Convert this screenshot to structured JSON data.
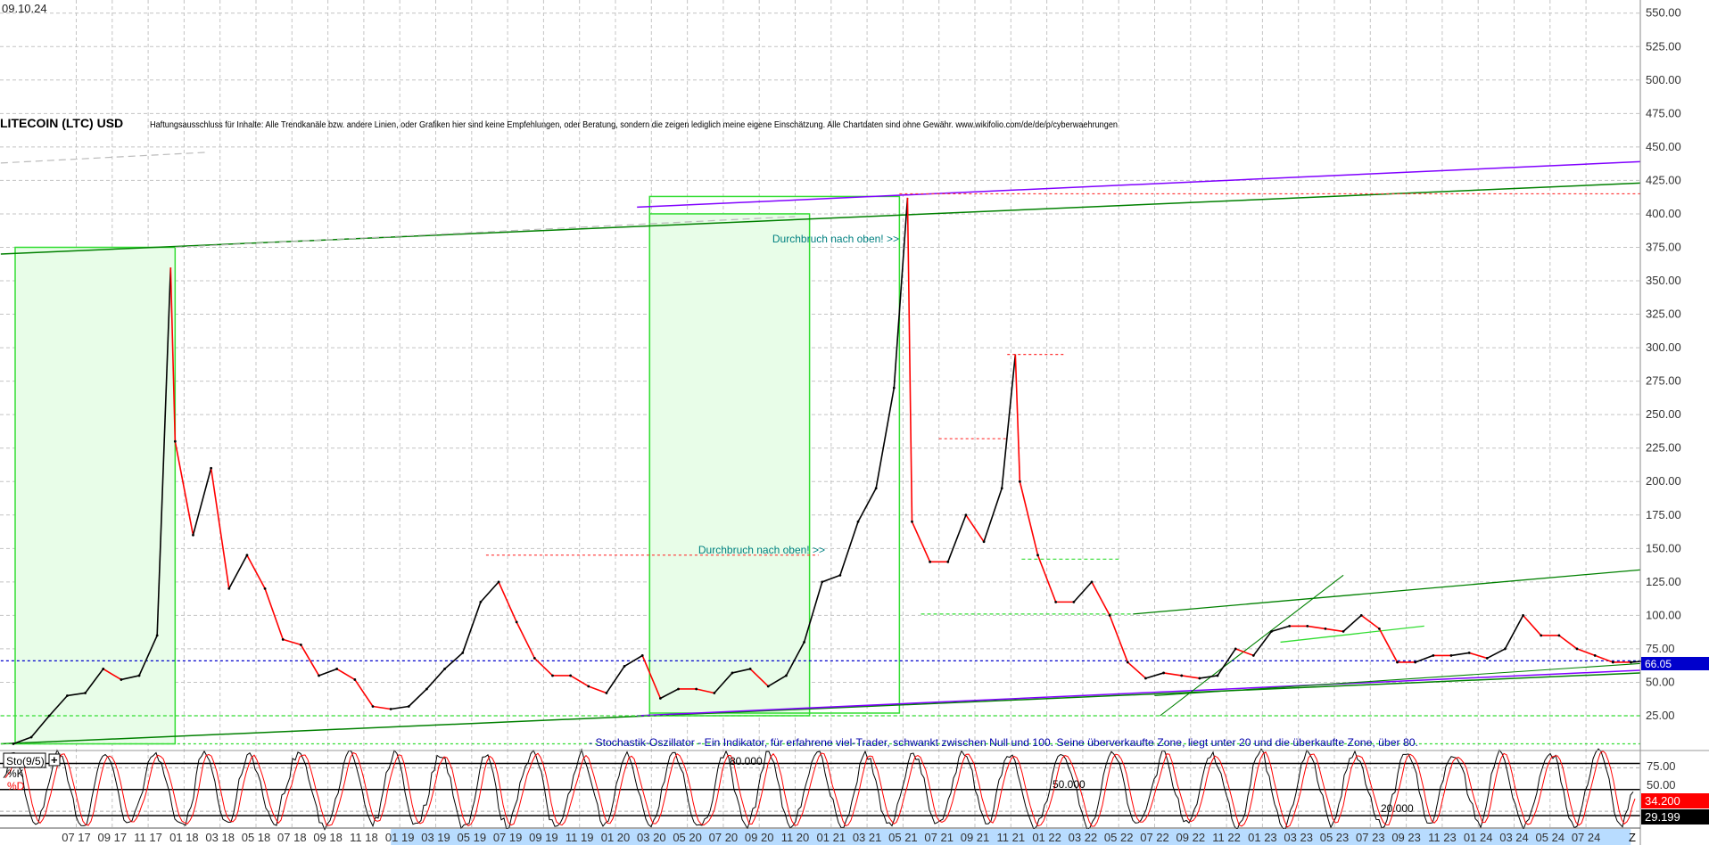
{
  "header": {
    "date": "09.10.24",
    "title": "LITECOIN (LTC) USD",
    "disclaimer": "Haftungsausschluss für Inhalte: Alle Trendkanäle bzw. andere Linien, oder Grafiken hier sind keine Empfehlungen, oder Beratung, sondern die zeigen lediglich meine eigene Einschätzung. Alle Chartdaten sind ohne Gewähr.  www.wikifolio.com/de/de/p/cyberwaehrungen"
  },
  "annotations": {
    "breakout_1": "Durchbruch nach oben! >>",
    "breakout_2": "Durchbruch nach oben! >>",
    "stoch_note": "- Stochastik-Oszillator - Ein Indikator, für erfahrene viel-Trader, schwankt zwischen Null und 100. Seine überverkaufte Zone, liegt unter 20 und die überkaufte Zone, über 80."
  },
  "price_axis": {
    "ticks": [
      "550.00",
      "525.00",
      "500.00",
      "475.00",
      "450.00",
      "425.00",
      "400.00",
      "375.00",
      "350.00",
      "325.00",
      "300.00",
      "275.00",
      "250.00",
      "225.00",
      "200.00",
      "175.00",
      "150.00",
      "125.00",
      "100.00",
      "75.00",
      "50.00",
      "25.00"
    ],
    "last_price": "66.05"
  },
  "stochastic": {
    "name": "Sto(9/5)",
    "k_label": "%K",
    "d_label": "%D",
    "level_80": "80.000",
    "level_50": "50.000",
    "level_20": "20.000",
    "ticks": [
      "75.00",
      "50.00"
    ],
    "d_value": "34.200",
    "k_value": "29.199"
  },
  "date_axis": {
    "labels": [
      "07 17",
      "09 17",
      "11 17",
      "01 18",
      "03 18",
      "05 18",
      "07 18",
      "09 18",
      "11 18",
      "01 19",
      "03 19",
      "05 19",
      "07 19",
      "09 19",
      "11 19",
      "01 20",
      "03 20",
      "05 20",
      "07 20",
      "09 20",
      "11 20",
      "01 21",
      "03 21",
      "05 21",
      "07 21",
      "09 21",
      "11 21",
      "01 22",
      "03 22",
      "05 22",
      "07 22",
      "09 22",
      "11 22",
      "01 23",
      "03 23",
      "05 23",
      "07 23",
      "09 23",
      "11 23",
      "01 24",
      "03 24",
      "05 24",
      "07 24"
    ],
    "end_label": "Z"
  },
  "colors": {
    "up": "#000000",
    "down": "#ff0000",
    "trend_green": "#008000",
    "trend_purple": "#8000ff",
    "zone_fill": "#e8fde8",
    "zone_border": "#33dd33",
    "last_price": "#0000cc",
    "stoch_k": "#000000",
    "stoch_d": "#ff0000"
  },
  "chart_data": {
    "type": "line",
    "title": "LITECOIN (LTC) USD",
    "ylim": [
      0,
      560
    ],
    "grid": true,
    "y_scale": "linear",
    "x": [
      "2017-03",
      "2017-04",
      "2017-05",
      "2017-06",
      "2017-07",
      "2017-08",
      "2017-09",
      "2017-10",
      "2017-11",
      "2017-12",
      "2018-01",
      "2018-02",
      "2018-03",
      "2018-04",
      "2018-05",
      "2018-06",
      "2018-07",
      "2018-08",
      "2018-09",
      "2018-10",
      "2018-11",
      "2018-12",
      "2019-01",
      "2019-02",
      "2019-03",
      "2019-04",
      "2019-05",
      "2019-06",
      "2019-07",
      "2019-08",
      "2019-09",
      "2019-10",
      "2019-11",
      "2019-12",
      "2020-01",
      "2020-02",
      "2020-03",
      "2020-04",
      "2020-05",
      "2020-06",
      "2020-07",
      "2020-08",
      "2020-09",
      "2020-10",
      "2020-11",
      "2020-12",
      "2021-01",
      "2021-02",
      "2021-03",
      "2021-04",
      "2021-05",
      "2021-06",
      "2021-07",
      "2021-08",
      "2021-09",
      "2021-10",
      "2021-11",
      "2021-12",
      "2022-01",
      "2022-02",
      "2022-03",
      "2022-04",
      "2022-05",
      "2022-06",
      "2022-07",
      "2022-08",
      "2022-09",
      "2022-10",
      "2022-11",
      "2022-12",
      "2023-01",
      "2023-02",
      "2023-03",
      "2023-04",
      "2023-05",
      "2023-06",
      "2023-07",
      "2023-08",
      "2023-09",
      "2023-10",
      "2023-11",
      "2023-12",
      "2024-01",
      "2024-02",
      "2024-03",
      "2024-04",
      "2024-05",
      "2024-06",
      "2024-07",
      "2024-08",
      "2024-09",
      "2024-10"
    ],
    "close": [
      4,
      9,
      25,
      40,
      42,
      60,
      52,
      55,
      85,
      230,
      160,
      210,
      120,
      145,
      120,
      82,
      78,
      55,
      60,
      52,
      32,
      30,
      32,
      45,
      60,
      72,
      110,
      125,
      95,
      68,
      55,
      55,
      47,
      42,
      62,
      70,
      38,
      45,
      45,
      42,
      57,
      60,
      47,
      55,
      80,
      125,
      130,
      170,
      195,
      270,
      170,
      140,
      140,
      175,
      155,
      195,
      200,
      145,
      110,
      110,
      125,
      100,
      65,
      53,
      57,
      55,
      53,
      55,
      75,
      70,
      88,
      92,
      92,
      90,
      88,
      100,
      90,
      65,
      65,
      70,
      70,
      72,
      68,
      75,
      100,
      85,
      85,
      75,
      70,
      65,
      65,
      66
    ],
    "peaks": [
      {
        "date": "2017-12",
        "value": 360
      },
      {
        "date": "2021-05",
        "value": 412
      },
      {
        "date": "2021-11",
        "value": 295
      }
    ],
    "horizontal_levels": [
      66.05,
      415,
      145,
      295,
      232,
      101,
      142,
      25
    ]
  }
}
